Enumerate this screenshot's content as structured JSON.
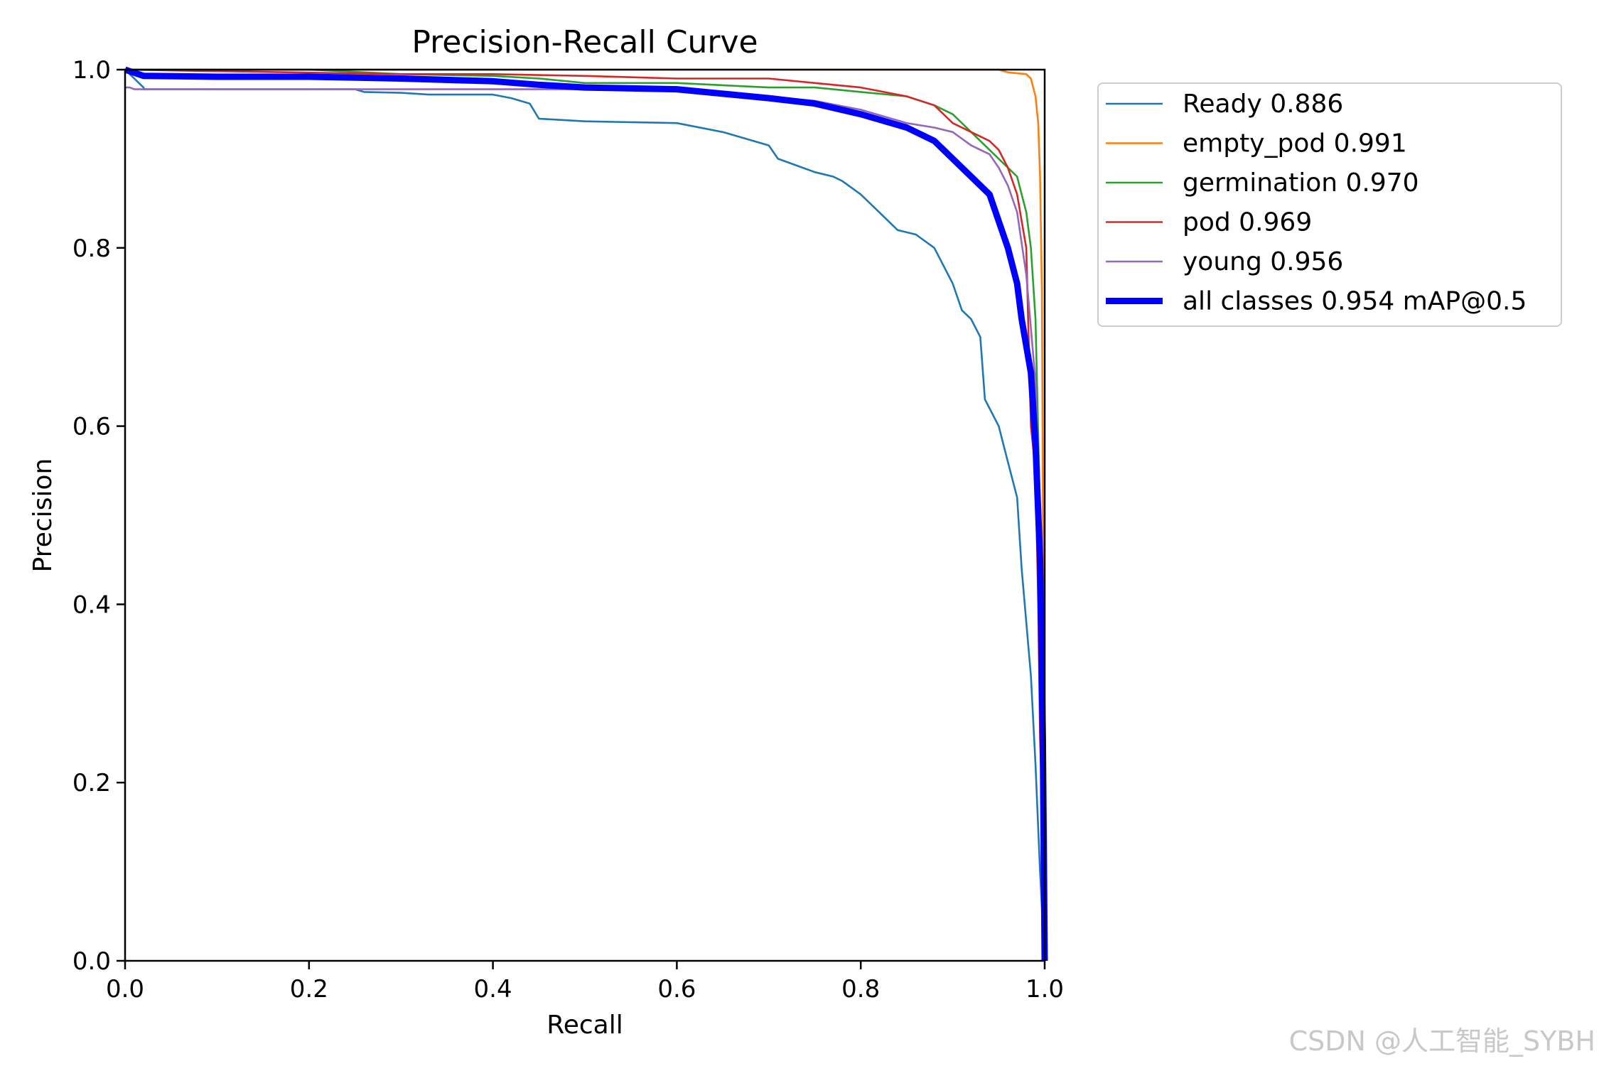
{
  "chart_data": {
    "type": "line",
    "title": "Precision-Recall Curve",
    "xlabel": "Recall",
    "ylabel": "Precision",
    "xlim": [
      0,
      1
    ],
    "ylim": [
      0,
      1
    ],
    "x_ticks": [
      "0.0",
      "0.2",
      "0.4",
      "0.6",
      "0.8",
      "1.0"
    ],
    "y_ticks": [
      "0.0",
      "0.2",
      "0.4",
      "0.6",
      "0.8",
      "1.0"
    ],
    "grid": false,
    "legend_position": "outside-top-right",
    "series": [
      {
        "name": "Ready 0.886",
        "color": "#1f77b4",
        "linewidth": "thin",
        "x": [
          0.0,
          0.02,
          0.021,
          0.1,
          0.25,
          0.26,
          0.3,
          0.33,
          0.4,
          0.42,
          0.44,
          0.45,
          0.5,
          0.6,
          0.65,
          0.7,
          0.71,
          0.75,
          0.77,
          0.78,
          0.8,
          0.82,
          0.84,
          0.86,
          0.88,
          0.9,
          0.91,
          0.92,
          0.93,
          0.935,
          0.94,
          0.95,
          0.96,
          0.97,
          0.975,
          0.98,
          0.985,
          0.99,
          0.995,
          1.0
        ],
        "y": [
          1.0,
          0.98,
          0.978,
          0.978,
          0.978,
          0.975,
          0.974,
          0.972,
          0.972,
          0.968,
          0.962,
          0.945,
          0.942,
          0.94,
          0.93,
          0.915,
          0.9,
          0.885,
          0.88,
          0.875,
          0.86,
          0.84,
          0.82,
          0.815,
          0.8,
          0.76,
          0.73,
          0.72,
          0.7,
          0.63,
          0.62,
          0.6,
          0.56,
          0.52,
          0.44,
          0.38,
          0.32,
          0.22,
          0.1,
          0.0
        ]
      },
      {
        "name": "empty_pod 0.991",
        "color": "#ff7f0e",
        "linewidth": "thin",
        "x": [
          0.0,
          0.1,
          0.2,
          0.4,
          0.6,
          0.8,
          0.9,
          0.95,
          0.96,
          0.98,
          0.985,
          0.99,
          0.993,
          0.995,
          0.997,
          0.999,
          1.0
        ],
        "y": [
          1.0,
          1.0,
          1.0,
          1.0,
          1.0,
          1.0,
          1.0,
          1.0,
          0.997,
          0.995,
          0.99,
          0.97,
          0.94,
          0.88,
          0.75,
          0.3,
          0.0
        ]
      },
      {
        "name": "germination 0.970",
        "color": "#2ca02c",
        "linewidth": "thin",
        "x": [
          0.0,
          0.2,
          0.3,
          0.4,
          0.45,
          0.5,
          0.6,
          0.7,
          0.75,
          0.8,
          0.85,
          0.88,
          0.9,
          0.93,
          0.95,
          0.96,
          0.97,
          0.975,
          0.98,
          0.985,
          0.99,
          0.995,
          1.0
        ],
        "y": [
          1.0,
          1.0,
          0.995,
          0.993,
          0.99,
          0.985,
          0.985,
          0.98,
          0.98,
          0.975,
          0.97,
          0.96,
          0.95,
          0.92,
          0.9,
          0.89,
          0.88,
          0.86,
          0.84,
          0.8,
          0.72,
          0.5,
          0.0
        ]
      },
      {
        "name": "pod 0.969",
        "color": "#d62728",
        "linewidth": "thin",
        "x": [
          0.0,
          0.3,
          0.4,
          0.5,
          0.6,
          0.7,
          0.75,
          0.8,
          0.85,
          0.88,
          0.9,
          0.92,
          0.94,
          0.95,
          0.96,
          0.97,
          0.98,
          0.985,
          0.99,
          0.993,
          0.995,
          0.998,
          1.0
        ],
        "y": [
          1.0,
          0.995,
          0.995,
          0.993,
          0.99,
          0.99,
          0.985,
          0.98,
          0.97,
          0.96,
          0.94,
          0.93,
          0.92,
          0.91,
          0.89,
          0.86,
          0.8,
          0.6,
          0.55,
          0.4,
          0.25,
          0.15,
          0.0
        ]
      },
      {
        "name": "young 0.956",
        "color": "#9467bd",
        "linewidth": "thin",
        "x": [
          0.0,
          0.005,
          0.01,
          0.1,
          0.3,
          0.4,
          0.5,
          0.55,
          0.6,
          0.65,
          0.7,
          0.75,
          0.8,
          0.85,
          0.88,
          0.9,
          0.92,
          0.94,
          0.95,
          0.96,
          0.97,
          0.98,
          0.99,
          0.995,
          1.0
        ],
        "y": [
          0.98,
          0.98,
          0.978,
          0.978,
          0.978,
          0.978,
          0.978,
          0.98,
          0.98,
          0.975,
          0.97,
          0.965,
          0.955,
          0.94,
          0.935,
          0.93,
          0.915,
          0.905,
          0.89,
          0.87,
          0.84,
          0.77,
          0.65,
          0.45,
          0.0
        ]
      },
      {
        "name": "all classes 0.954 mAP@0.5",
        "color": "#0000ff",
        "linewidth": "thick",
        "x": [
          0.0,
          0.02,
          0.1,
          0.2,
          0.3,
          0.4,
          0.45,
          0.5,
          0.6,
          0.65,
          0.7,
          0.75,
          0.8,
          0.85,
          0.88,
          0.9,
          0.92,
          0.94,
          0.95,
          0.96,
          0.97,
          0.975,
          0.98,
          0.985,
          0.99,
          0.995,
          0.998,
          1.0
        ],
        "y": [
          1.0,
          0.993,
          0.992,
          0.992,
          0.99,
          0.987,
          0.983,
          0.98,
          0.978,
          0.973,
          0.968,
          0.962,
          0.95,
          0.935,
          0.92,
          0.9,
          0.88,
          0.86,
          0.83,
          0.8,
          0.76,
          0.72,
          0.69,
          0.66,
          0.58,
          0.45,
          0.25,
          0.0
        ]
      }
    ]
  },
  "watermark": "CSDN @人工智能_SYBH"
}
